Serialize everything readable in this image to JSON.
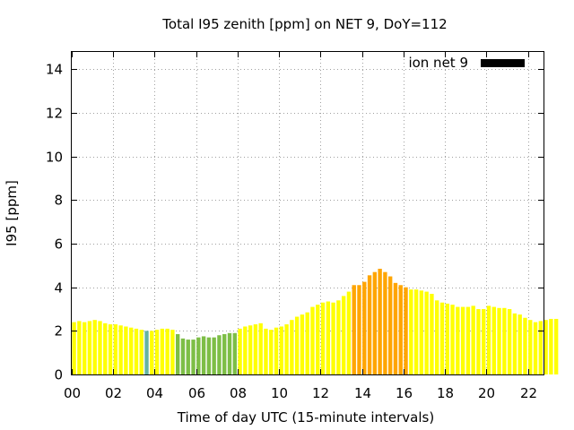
{
  "chart_data": {
    "type": "bar",
    "title": "Total I95 zenith [ppm] on NET 9, DoY=112",
    "xlabel": "Time of day UTC (15-minute intervals)",
    "ylabel": "I95 [ppm]",
    "xlim": [
      0,
      22.75
    ],
    "ylim": [
      0,
      14.8
    ],
    "bin_width_hours": 0.25,
    "x_ticks": [
      0,
      2,
      4,
      6,
      8,
      10,
      12,
      14,
      16,
      18,
      20,
      22
    ],
    "x_tick_labels": [
      "00",
      "02",
      "04",
      "06",
      "08",
      "10",
      "12",
      "14",
      "16",
      "18",
      "20",
      "22"
    ],
    "y_ticks": [
      0,
      2,
      4,
      6,
      8,
      10,
      12,
      14
    ],
    "y_tick_labels": [
      "0",
      "2",
      "4",
      "6",
      "8",
      "10",
      "12",
      "14"
    ],
    "grid": true,
    "legend": {
      "placement": "top-right",
      "entries": [
        {
          "label": "ion net 9",
          "color": "#000000"
        }
      ]
    },
    "colors": {
      "yellow": "#ffff00",
      "yellow_green": "#c8ff00",
      "green": "#7dbe46",
      "teal": "#64b4a0",
      "orange": "#ffa500"
    },
    "series": [
      {
        "name": "ion net 9",
        "values": [
          2.4,
          2.45,
          2.4,
          2.45,
          2.5,
          2.45,
          2.35,
          2.3,
          2.3,
          2.25,
          2.2,
          2.15,
          2.1,
          2.05,
          2.0,
          2.0,
          2.05,
          2.1,
          2.1,
          2.05,
          1.85,
          1.65,
          1.6,
          1.6,
          1.7,
          1.75,
          1.7,
          1.7,
          1.8,
          1.85,
          1.9,
          1.9,
          2.1,
          2.2,
          2.25,
          2.3,
          2.35,
          2.1,
          2.05,
          2.15,
          2.2,
          2.3,
          2.5,
          2.65,
          2.75,
          2.85,
          3.1,
          3.2,
          3.3,
          3.35,
          3.3,
          3.4,
          3.6,
          3.8,
          4.1,
          4.1,
          4.25,
          4.55,
          4.7,
          4.85,
          4.7,
          4.5,
          4.2,
          4.1,
          4.0,
          3.9,
          3.9,
          3.85,
          3.8,
          3.7,
          3.4,
          3.3,
          3.25,
          3.2,
          3.1,
          3.1,
          3.1,
          3.15,
          3.0,
          3.0,
          3.15,
          3.1,
          3.05,
          3.05,
          3.0,
          2.8,
          2.75,
          2.6,
          2.5,
          2.4,
          2.45,
          2.5,
          2.55,
          2.55
        ],
        "colors": [
          "yellow",
          "yellow",
          "yellow",
          "yellow",
          "yellow",
          "yellow",
          "yellow",
          "yellow",
          "yellow",
          "yellow",
          "yellow",
          "yellow",
          "yellow",
          "yellow",
          "teal",
          "yellow",
          "yellow",
          "yellow",
          "yellow",
          "yellow",
          "green",
          "green",
          "green",
          "green",
          "green",
          "green",
          "green",
          "green",
          "green",
          "green",
          "green",
          "green",
          "yellow",
          "yellow",
          "yellow",
          "yellow",
          "yellow",
          "yellow",
          "yellow",
          "yellow",
          "yellow",
          "yellow",
          "yellow",
          "yellow",
          "yellow",
          "yellow",
          "yellow",
          "yellow",
          "yellow",
          "yellow",
          "yellow",
          "yellow",
          "yellow",
          "yellow",
          "orange",
          "orange",
          "orange",
          "orange",
          "orange",
          "orange",
          "orange",
          "orange",
          "orange",
          "orange",
          "orange",
          "yellow",
          "yellow",
          "yellow",
          "yellow",
          "yellow",
          "yellow",
          "yellow",
          "yellow",
          "yellow",
          "yellow",
          "yellow",
          "yellow",
          "yellow",
          "yellow",
          "yellow",
          "yellow",
          "yellow",
          "yellow",
          "yellow",
          "yellow",
          "yellow",
          "yellow",
          "yellow",
          "yellow",
          "yellow",
          "yellow",
          "yellow",
          "yellow",
          "yellow"
        ]
      }
    ]
  }
}
